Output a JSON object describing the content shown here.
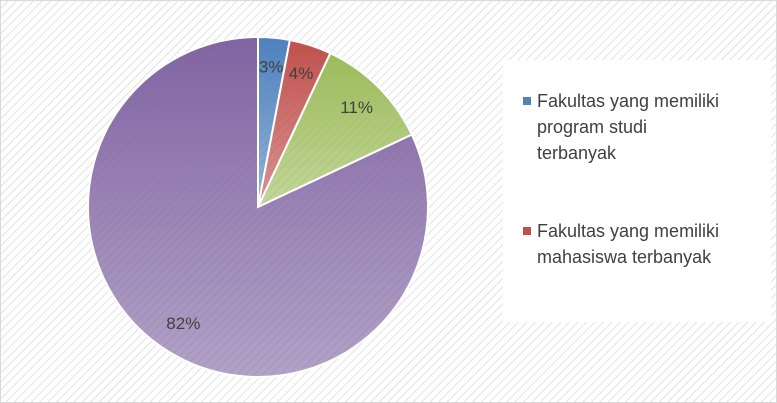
{
  "chart_data": {
    "type": "pie",
    "categories": [
      "Fakultas yang memiliki program studi terbanyak",
      "Fakultas yang memiliki mahasiswa terbanyak",
      null,
      null
    ],
    "values": [
      3,
      4,
      11,
      82
    ],
    "value_labels": [
      "3%",
      "4%",
      "11%",
      "82%"
    ],
    "colors": [
      "#4f81bd",
      "#c0504d",
      "#9bbb59",
      "#8064a2"
    ]
  }
}
